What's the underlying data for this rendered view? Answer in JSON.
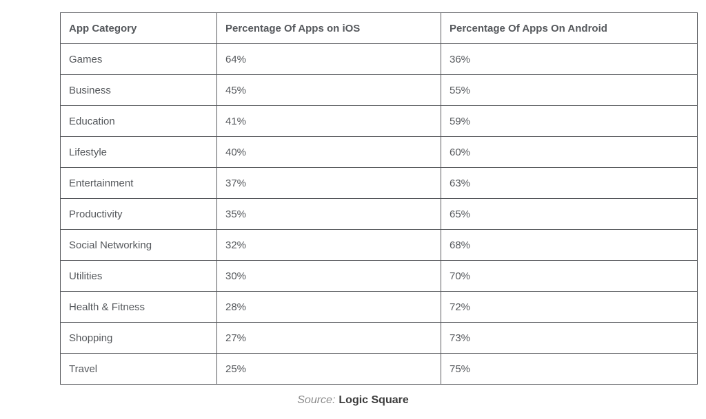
{
  "chart_data": {
    "type": "table",
    "title": "",
    "columns": [
      "App Category",
      "Percentage Of Apps on iOS",
      "Percentage Of Apps On Android"
    ],
    "rows": [
      {
        "category": "Games",
        "ios": "64%",
        "android": "36%"
      },
      {
        "category": "Business",
        "ios": "45%",
        "android": "55%"
      },
      {
        "category": "Education",
        "ios": "41%",
        "android": "59%"
      },
      {
        "category": "Lifestyle",
        "ios": "40%",
        "android": "60%"
      },
      {
        "category": "Entertainment",
        "ios": "37%",
        "android": "63%"
      },
      {
        "category": "Productivity",
        "ios": "35%",
        "android": "65%"
      },
      {
        "category": "Social Networking",
        "ios": "32%",
        "android": "68%"
      },
      {
        "category": "Utilities",
        "ios": "30%",
        "android": "70%"
      },
      {
        "category": "Health & Fitness",
        "ios": "28%",
        "android": "72%"
      },
      {
        "category": "Shopping",
        "ios": "27%",
        "android": "73%"
      },
      {
        "category": "Travel",
        "ios": "25%",
        "android": "75%"
      }
    ]
  },
  "header": {
    "category": "App Category",
    "ios": "Percentage Of Apps on iOS",
    "android": "Percentage Of Apps On Android"
  },
  "source": {
    "label": "Source:",
    "value": "Logic Square"
  },
  "colors": {
    "border": "#54565a",
    "text": "#55585c",
    "source_label": "#8b8b8b",
    "source_value": "#3c3c3c",
    "background": "#ffffff"
  }
}
